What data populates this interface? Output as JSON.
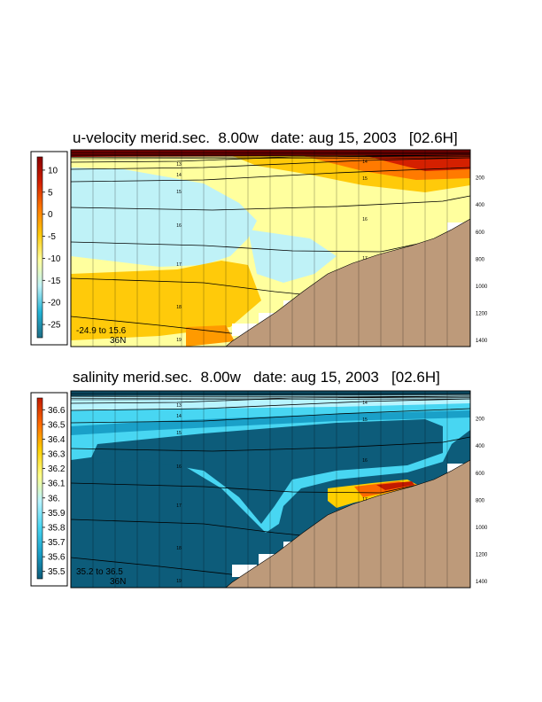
{
  "chart_data": [
    {
      "type": "heatmap",
      "title": "u-velocity merid.sec.  8.00w   date: aug 15, 2003   [02.6H]",
      "colorbar": {
        "ticks": [
          "10",
          "5",
          "0",
          "-5",
          "-10",
          "-15",
          "-20",
          "-25"
        ],
        "values": [
          10,
          5,
          0,
          -5,
          -10,
          -15,
          -20,
          -25
        ],
        "range": [
          -28,
          13
        ]
      },
      "depth_ticks": [
        "200",
        "400",
        "600",
        "800",
        "1000",
        "1200",
        "1400"
      ],
      "depth_values": [
        200,
        400,
        600,
        800,
        1000,
        1200,
        1400
      ],
      "contour_labels": [
        "13",
        "14",
        "15",
        "16",
        "17",
        "18",
        "19",
        "14",
        "15",
        "16",
        "17"
      ],
      "range_text": "-24.9 to  15.6",
      "lat_text": "36N"
    },
    {
      "type": "heatmap",
      "title": "salinity merid.sec.  8.00w   date: aug 15, 2003   [02.6H]",
      "colorbar": {
        "ticks": [
          "36.6",
          "36.5",
          "36.4",
          "36.3",
          "36.2",
          "36.1",
          "36.",
          "35.9",
          "35.8",
          "35.7",
          "35.6",
          "35.5"
        ],
        "values": [
          36.6,
          36.5,
          36.4,
          36.3,
          36.2,
          36.1,
          36.0,
          35.9,
          35.8,
          35.7,
          35.6,
          35.5
        ],
        "range": [
          35.45,
          36.68
        ]
      },
      "depth_ticks": [
        "200",
        "400",
        "600",
        "800",
        "1000",
        "1200",
        "1400"
      ],
      "depth_values": [
        200,
        400,
        600,
        800,
        1000,
        1200,
        1400
      ],
      "contour_labels": [
        "13",
        "14",
        "15",
        "16",
        "17",
        "18",
        "19",
        "14",
        "15",
        "16",
        "17"
      ],
      "range_text": "35.2 to  36.5",
      "lat_text": "36N"
    }
  ],
  "colors": {
    "terrain": "#bd9a7a",
    "velocity_scale": [
      "#1f6e86",
      "#23b4d6",
      "#bff2f7",
      "#ffff9e",
      "#ffca0a",
      "#ff7a00",
      "#d42000",
      "#8a0000"
    ],
    "salinity_scale": [
      "#0d5c7a",
      "#1aa0c8",
      "#48d6f2",
      "#b8f4ff",
      "#ffff8a",
      "#ffd000",
      "#ff6a00",
      "#c21a00"
    ]
  }
}
